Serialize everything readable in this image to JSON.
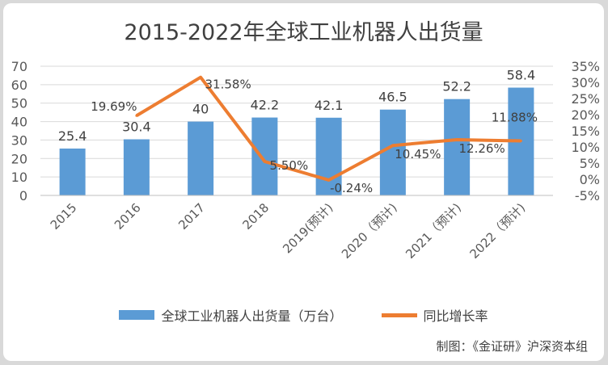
{
  "chart_data": {
    "type": "bar",
    "title": "2015-2022年全球工业机器人出货量",
    "categories": [
      "2015",
      "2016",
      "2017",
      "2018",
      "2019(预计)",
      "2020（预计)",
      "2021（预计)",
      "2022（预计)"
    ],
    "series": [
      {
        "name": "全球工业机器人出货量（万台）",
        "type": "bar",
        "axis": "left",
        "values": [
          25.4,
          30.4,
          40,
          42.2,
          42.1,
          46.5,
          52.2,
          58.4
        ],
        "labels": [
          "25.4",
          "30.4",
          "40",
          "42.2",
          "42.1",
          "46.5",
          "52.2",
          "58.4"
        ],
        "color": "#5b9bd5"
      },
      {
        "name": "同比增长率",
        "type": "line",
        "axis": "right",
        "values": [
          null,
          19.69,
          31.58,
          5.5,
          -0.24,
          10.45,
          12.26,
          11.88
        ],
        "labels": [
          "",
          "19.69%",
          "31.58%",
          "5.50%",
          "-0.24%",
          "10.45%",
          "12.26%",
          "11.88%"
        ],
        "color": "#ed7d31"
      }
    ],
    "y_left": {
      "min": 0,
      "max": 70,
      "ticks": [
        "0",
        "10",
        "20",
        "30",
        "40",
        "50",
        "60",
        "70"
      ]
    },
    "y_right": {
      "min": -5,
      "max": 35,
      "ticks": [
        "-5%",
        "0%",
        "5%",
        "10%",
        "15%",
        "20%",
        "25%",
        "30%",
        "35%"
      ]
    },
    "grid": true,
    "legend": "bottom"
  },
  "source_note": "制图：《金证研》沪深资本组"
}
